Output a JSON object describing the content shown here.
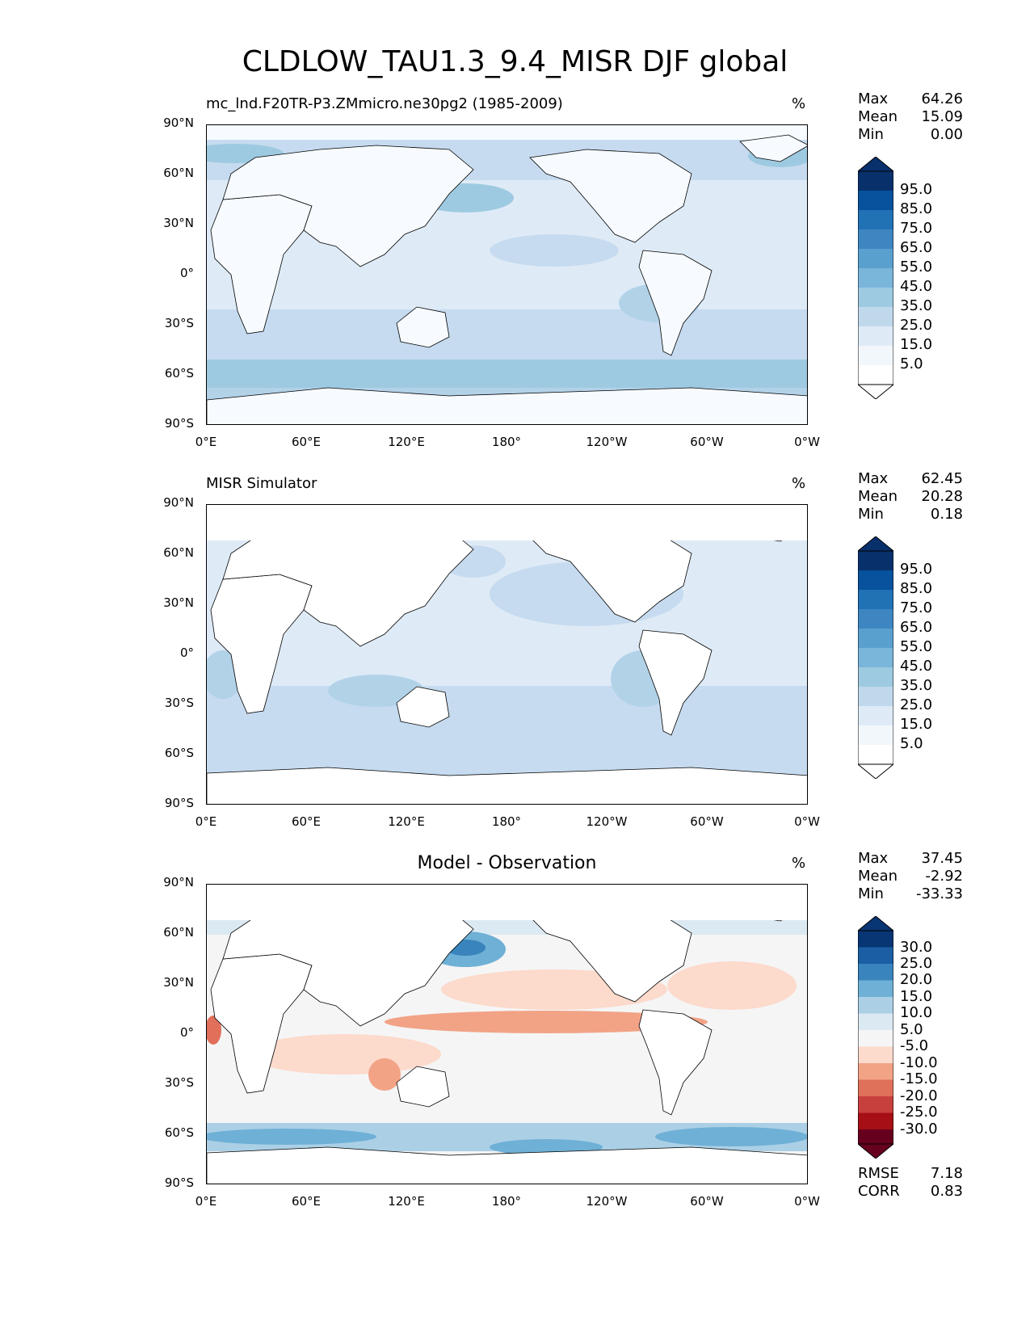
{
  "title": "CLDLOW_TAU1.3_9.4_MISR DJF global",
  "x_ticks": [
    "0°E",
    "60°E",
    "120°E",
    "180°",
    "120°W",
    "60°W",
    "0°W"
  ],
  "y_ticks": [
    "90°N",
    "60°N",
    "30°N",
    "0°",
    "30°S",
    "60°S",
    "90°S"
  ],
  "panels": [
    {
      "title": "mc_lnd.F20TR-P3.ZMmicro.ne30pg2 (1985-2009)",
      "units": "%",
      "stats": {
        "max_label": "Max",
        "max": "64.26",
        "mean_label": "Mean",
        "mean": "15.09",
        "min_label": "Min",
        "min": "0.00"
      },
      "colorbar_labels": [
        "95.0",
        "85.0",
        "75.0",
        "65.0",
        "55.0",
        "45.0",
        "35.0",
        "25.0",
        "15.0",
        "5.0"
      ]
    },
    {
      "title": "MISR Simulator",
      "units": "%",
      "stats": {
        "max_label": "Max",
        "max": "62.45",
        "mean_label": "Mean",
        "mean": "20.28",
        "min_label": "Min",
        "min": "0.18"
      },
      "colorbar_labels": [
        "95.0",
        "85.0",
        "75.0",
        "65.0",
        "55.0",
        "45.0",
        "35.0",
        "25.0",
        "15.0",
        "5.0"
      ]
    },
    {
      "title": "Model - Observation",
      "units": "%",
      "stats": {
        "max_label": "Max",
        "max": "37.45",
        "mean_label": "Mean",
        "mean": "-2.92",
        "min_label": "Min",
        "min": "-33.33"
      },
      "colorbar_labels": [
        "30.0",
        "25.0",
        "20.0",
        "15.0",
        "10.0",
        "5.0",
        "-5.0",
        "-10.0",
        "-15.0",
        "-20.0",
        "-25.0",
        "-30.0"
      ],
      "rmse_label": "RMSE",
      "rmse": "7.18",
      "corr_label": "CORR",
      "corr": "0.83"
    }
  ],
  "colors": {
    "blues": [
      "#f7fbff",
      "#deebf7",
      "#c6dbef",
      "#b2d2e8",
      "#9ecae1",
      "#6baed6",
      "#4292c6",
      "#2171b5",
      "#1059a6",
      "#08519c",
      "#08306b"
    ],
    "diff": [
      "#67001f",
      "#a50f15",
      "#c8403e",
      "#e0705a",
      "#f2a386",
      "#fcdacc",
      "#f5f5f5",
      "#dbe9f2",
      "#abd0e6",
      "#6fb0d6",
      "#3a84bd",
      "#1b5ea3",
      "#083573"
    ]
  }
}
